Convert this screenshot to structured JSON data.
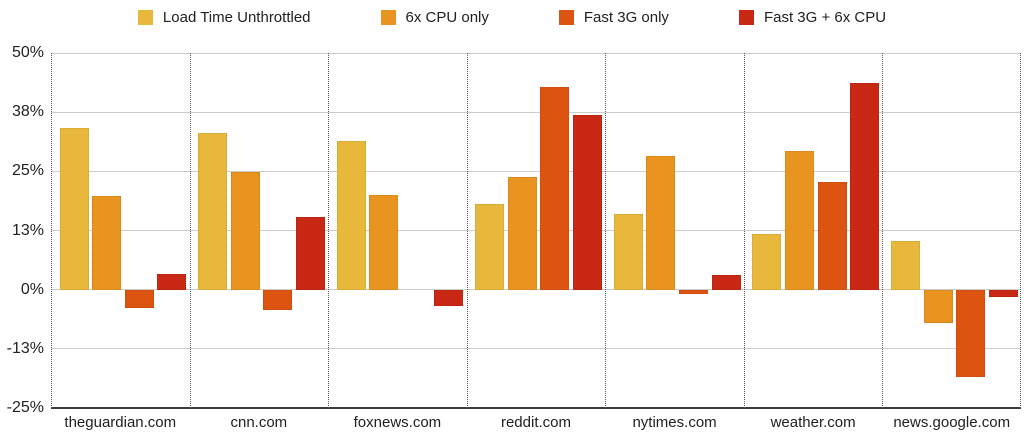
{
  "chart_data": {
    "type": "bar",
    "title": "",
    "xlabel": "",
    "ylabel": "",
    "value_unit": "%",
    "grid": true,
    "legend_position": "top",
    "categories": [
      "theguardian.com",
      "cnn.com",
      "foxnews.com",
      "reddit.com",
      "nytimes.com",
      "weather.com",
      "news.google.com"
    ],
    "series": [
      {
        "name": "Load Time Unthrottled",
        "color": "#E8B83C",
        "values": [
          34.1,
          33.0,
          31.4,
          18.2,
          16.0,
          11.7,
          10.2
        ]
      },
      {
        "name": "6x CPU only",
        "color": "#E8941F",
        "values": [
          19.8,
          24.9,
          20.0,
          23.9,
          28.2,
          29.4,
          -7.0
        ]
      },
      {
        "name": "Fast 3G only",
        "color": "#DC540F",
        "values": [
          -3.8,
          -4.3,
          0.0,
          42.8,
          -1.0,
          22.7,
          -18.4
        ]
      },
      {
        "name": "Fast 3G + 6x CPU",
        "color": "#C92815",
        "values": [
          3.4,
          15.4,
          -3.4,
          36.9,
          3.2,
          43.7,
          -1.5
        ]
      }
    ],
    "y_axis": {
      "min": -25,
      "max": 50,
      "ticks": [
        {
          "value": 50,
          "label": "50%"
        },
        {
          "value": 37.5,
          "label": "38%"
        },
        {
          "value": 25,
          "label": "25%"
        },
        {
          "value": 12.5,
          "label": "13%"
        },
        {
          "value": 0,
          "label": "0%"
        },
        {
          "value": -12.5,
          "label": "-13%"
        },
        {
          "value": -25,
          "label": "-25%"
        }
      ]
    }
  }
}
